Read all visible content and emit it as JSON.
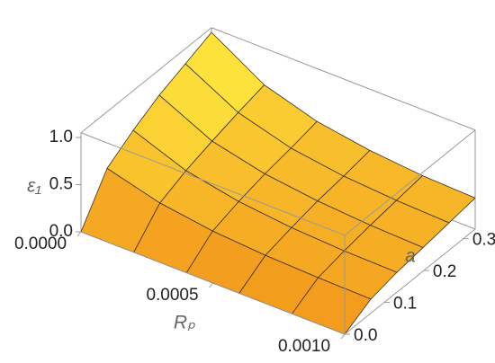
{
  "chart_data": {
    "type": "surface",
    "xlabel": "Rₚ",
    "ylabel": "a",
    "zlabel": "ε₁",
    "x": [
      0,
      0.0002,
      0.0004,
      0.0006,
      0.0008,
      0.001
    ],
    "y": [
      0,
      0.066,
      0.132,
      0.198,
      0.264,
      0.33
    ],
    "z": [
      [
        0,
        0,
        0,
        0,
        0,
        0
      ],
      [
        0.45,
        0.3,
        0.22,
        0.18,
        0.16,
        0.15
      ],
      [
        0.63,
        0.42,
        0.31,
        0.25,
        0.22,
        0.21
      ],
      [
        0.78,
        0.51,
        0.38,
        0.31,
        0.27,
        0.25
      ],
      [
        0.89,
        0.59,
        0.43,
        0.35,
        0.31,
        0.29
      ],
      [
        1,
        0.66,
        0.49,
        0.4,
        0.35,
        0.33
      ]
    ],
    "xlim": [
      0,
      0.001
    ],
    "ylim": [
      0,
      0.33
    ],
    "zlim": [
      0,
      1.05
    ],
    "xticks": [
      {
        "value": 0,
        "label": "0.0000"
      },
      {
        "value": 0.0005,
        "label": "0.0005"
      },
      {
        "value": 0.001,
        "label": "0.0010"
      }
    ],
    "yticks": [
      {
        "value": 0,
        "label": "0.0"
      },
      {
        "value": 0.1,
        "label": "0.1"
      },
      {
        "value": 0.2,
        "label": "0.2"
      },
      {
        "value": 0.3,
        "label": "0.3"
      }
    ],
    "zticks": [
      {
        "value": 0,
        "label": "0.0"
      },
      {
        "value": 0.5,
        "label": "0.5"
      },
      {
        "value": 1,
        "label": "1.0"
      }
    ],
    "colormap": [
      "#f29419",
      "#fde23c"
    ]
  }
}
